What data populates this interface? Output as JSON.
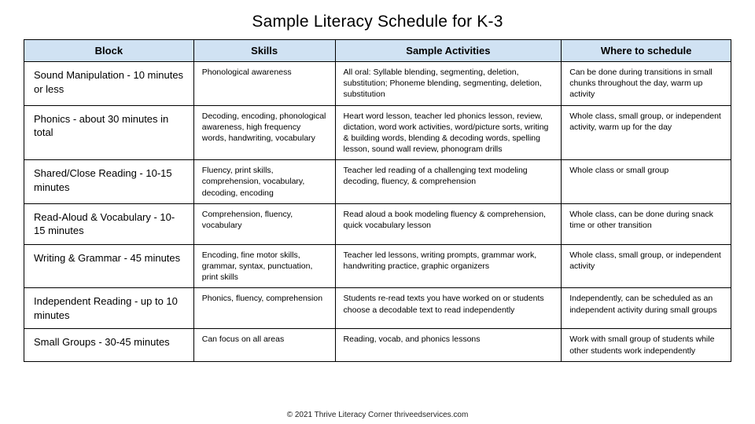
{
  "title": "Sample Literacy Schedule for K-3",
  "colors": {
    "header_bg": "#d0e2f3",
    "border": "#000000",
    "page_bg": "#ffffff",
    "text": "#000000"
  },
  "column_widths_percent": [
    24,
    20,
    32,
    24
  ],
  "columns": [
    "Block",
    "Skills",
    "Sample Activities",
    "Where to schedule"
  ],
  "rows": [
    {
      "block": "Sound Manipulation - 10 minutes or less",
      "skills": "Phonological awareness",
      "activities": "All oral: Syllable blending, segmenting, deletion, substitution; Phoneme blending, segmenting, deletion, substitution",
      "where": "Can be done during transitions in small chunks throughout the day, warm up activity"
    },
    {
      "block": "Phonics - about 30 minutes in total",
      "skills": "Decoding, encoding, phonological awareness, high frequency words, handwriting, vocabulary",
      "activities": "Heart word lesson, teacher led phonics lesson, review, dictation, word work activities, word/picture sorts, writing & building words, blending & decoding words, spelling lesson, sound wall review, phonogram drills",
      "where": "Whole class, small group, or independent activity, warm up for the day"
    },
    {
      "block": "Shared/Close Reading - 10-15 minutes",
      "skills": "Fluency, print skills, comprehension, vocabulary, decoding, encoding",
      "activities": "Teacher led reading of a challenging text modeling decoding, fluency, & comprehension",
      "where": "Whole class or small group"
    },
    {
      "block": "Read-Aloud & Vocabulary - 10-15 minutes",
      "skills": "Comprehension, fluency, vocabulary",
      "activities": "Read aloud a book modeling fluency & comprehension, quick vocabulary lesson",
      "where": "Whole class, can be done during snack time or other transition"
    },
    {
      "block": "Writing & Grammar - 45 minutes",
      "skills": "Encoding, fine motor skills, grammar, syntax, punctuation, print skills",
      "activities": "Teacher led lessons, writing prompts, grammar work, handwriting practice, graphic organizers",
      "where": "Whole class, small group, or independent activity"
    },
    {
      "block": "Independent Reading - up to 10 minutes",
      "skills": "Phonics, fluency, comprehension",
      "activities": "Students re-read texts you have worked on or students choose a decodable text to read independently",
      "where": "Independently, can be scheduled as an independent activity during small groups"
    },
    {
      "block": "Small Groups - 30-45 minutes",
      "skills": "Can focus on all areas",
      "activities": "Reading, vocab, and phonics lessons",
      "where": "Work with small group of students while other students work independently"
    }
  ],
  "footer": "© 2021 Thrive Literacy Corner    thriveedservices.com"
}
